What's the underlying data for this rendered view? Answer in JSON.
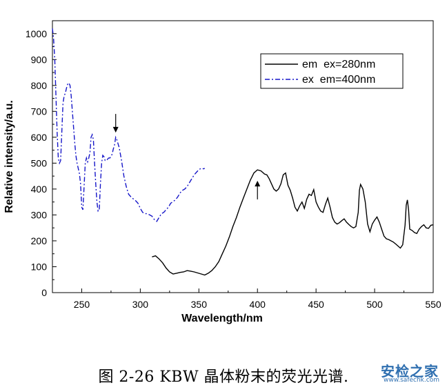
{
  "chart_data": {
    "type": "line",
    "xlabel": "Wavelength/nm",
    "ylabel": "Relative intensity/a.u.",
    "xlim": [
      225,
      550
    ],
    "ylim": [
      0,
      1050
    ],
    "x_ticks": [
      250,
      300,
      350,
      400,
      450,
      500,
      550
    ],
    "y_ticks": [
      0,
      100,
      200,
      300,
      400,
      500,
      600,
      700,
      800,
      900,
      1000
    ],
    "legend_position": "top-right",
    "series": [
      {
        "name": "em  ex=280nm",
        "color": "#000000",
        "style": "solid",
        "points": [
          [
            310,
            138
          ],
          [
            313,
            142
          ],
          [
            316,
            130
          ],
          [
            319,
            115
          ],
          [
            322,
            95
          ],
          [
            325,
            80
          ],
          [
            328,
            72
          ],
          [
            331,
            75
          ],
          [
            334,
            78
          ],
          [
            337,
            80
          ],
          [
            340,
            85
          ],
          [
            343,
            83
          ],
          [
            346,
            80
          ],
          [
            349,
            76
          ],
          [
            352,
            72
          ],
          [
            355,
            68
          ],
          [
            358,
            75
          ],
          [
            361,
            85
          ],
          [
            364,
            100
          ],
          [
            367,
            120
          ],
          [
            370,
            150
          ],
          [
            373,
            180
          ],
          [
            376,
            215
          ],
          [
            379,
            255
          ],
          [
            382,
            290
          ],
          [
            385,
            330
          ],
          [
            388,
            365
          ],
          [
            391,
            400
          ],
          [
            394,
            435
          ],
          [
            397,
            462
          ],
          [
            400,
            474
          ],
          [
            403,
            470
          ],
          [
            406,
            458
          ],
          [
            408,
            455
          ],
          [
            410,
            440
          ],
          [
            412,
            420
          ],
          [
            414,
            400
          ],
          [
            416,
            392
          ],
          [
            418,
            400
          ],
          [
            420,
            420
          ],
          [
            422,
            455
          ],
          [
            424,
            462
          ],
          [
            426,
            415
          ],
          [
            428,
            395
          ],
          [
            430,
            365
          ],
          [
            432,
            330
          ],
          [
            434,
            315
          ],
          [
            436,
            335
          ],
          [
            438,
            350
          ],
          [
            440,
            325
          ],
          [
            442,
            360
          ],
          [
            444,
            380
          ],
          [
            446,
            375
          ],
          [
            448,
            398
          ],
          [
            450,
            350
          ],
          [
            452,
            330
          ],
          [
            454,
            315
          ],
          [
            456,
            310
          ],
          [
            458,
            340
          ],
          [
            460,
            365
          ],
          [
            462,
            330
          ],
          [
            464,
            290
          ],
          [
            466,
            272
          ],
          [
            468,
            265
          ],
          [
            470,
            270
          ],
          [
            472,
            278
          ],
          [
            474,
            285
          ],
          [
            476,
            272
          ],
          [
            478,
            263
          ],
          [
            480,
            255
          ],
          [
            482,
            250
          ],
          [
            484,
            255
          ],
          [
            486,
            310
          ],
          [
            487,
            395
          ],
          [
            488,
            418
          ],
          [
            490,
            400
          ],
          [
            492,
            350
          ],
          [
            494,
            265
          ],
          [
            496,
            235
          ],
          [
            498,
            265
          ],
          [
            500,
            280
          ],
          [
            502,
            292
          ],
          [
            504,
            272
          ],
          [
            506,
            245
          ],
          [
            508,
            218
          ],
          [
            510,
            208
          ],
          [
            512,
            205
          ],
          [
            514,
            200
          ],
          [
            516,
            195
          ],
          [
            518,
            188
          ],
          [
            520,
            180
          ],
          [
            522,
            172
          ],
          [
            524,
            185
          ],
          [
            526,
            260
          ],
          [
            527,
            338
          ],
          [
            528,
            358
          ],
          [
            529,
            320
          ],
          [
            530,
            245
          ],
          [
            532,
            240
          ],
          [
            534,
            232
          ],
          [
            536,
            228
          ],
          [
            538,
            245
          ],
          [
            540,
            255
          ],
          [
            542,
            262
          ],
          [
            544,
            250
          ],
          [
            546,
            248
          ],
          [
            548,
            260
          ],
          [
            550,
            262
          ]
        ]
      },
      {
        "name": "ex  em=400nm",
        "color": "#1515c8",
        "style": "dashdot",
        "points": [
          [
            225,
            1020
          ],
          [
            226,
            980
          ],
          [
            227,
            900
          ],
          [
            228,
            760
          ],
          [
            229,
            620
          ],
          [
            230,
            520
          ],
          [
            231,
            500
          ],
          [
            232,
            510
          ],
          [
            233,
            620
          ],
          [
            234,
            730
          ],
          [
            235,
            760
          ],
          [
            236,
            770
          ],
          [
            237,
            790
          ],
          [
            238,
            805
          ],
          [
            239,
            810
          ],
          [
            240,
            800
          ],
          [
            241,
            760
          ],
          [
            242,
            700
          ],
          [
            243,
            640
          ],
          [
            244,
            580
          ],
          [
            245,
            530
          ],
          [
            246,
            500
          ],
          [
            247,
            480
          ],
          [
            248,
            460
          ],
          [
            249,
            420
          ],
          [
            250,
            330
          ],
          [
            251,
            320
          ],
          [
            252,
            410
          ],
          [
            253,
            500
          ],
          [
            254,
            520
          ],
          [
            255,
            505
          ],
          [
            256,
            520
          ],
          [
            257,
            540
          ],
          [
            258,
            600
          ],
          [
            259,
            610
          ],
          [
            260,
            590
          ],
          [
            261,
            500
          ],
          [
            262,
            420
          ],
          [
            263,
            350
          ],
          [
            264,
            315
          ],
          [
            265,
            320
          ],
          [
            266,
            420
          ],
          [
            267,
            500
          ],
          [
            268,
            530
          ],
          [
            269,
            525
          ],
          [
            270,
            510
          ],
          [
            271,
            510
          ],
          [
            272,
            515
          ],
          [
            273,
            520
          ],
          [
            274,
            520
          ],
          [
            275,
            525
          ],
          [
            276,
            535
          ],
          [
            277,
            555
          ],
          [
            278,
            570
          ],
          [
            279,
            600
          ],
          [
            280,
            590
          ],
          [
            281,
            575
          ],
          [
            282,
            560
          ],
          [
            283,
            535
          ],
          [
            284,
            510
          ],
          [
            285,
            480
          ],
          [
            286,
            450
          ],
          [
            287,
            430
          ],
          [
            288,
            410
          ],
          [
            289,
            395
          ],
          [
            290,
            380
          ],
          [
            292,
            370
          ],
          [
            294,
            362
          ],
          [
            296,
            355
          ],
          [
            298,
            345
          ],
          [
            300,
            325
          ],
          [
            302,
            310
          ],
          [
            304,
            305
          ],
          [
            306,
            305
          ],
          [
            308,
            300
          ],
          [
            310,
            295
          ],
          [
            312,
            282
          ],
          [
            314,
            275
          ],
          [
            316,
            290
          ],
          [
            318,
            305
          ],
          [
            320,
            310
          ],
          [
            322,
            320
          ],
          [
            324,
            330
          ],
          [
            326,
            345
          ],
          [
            328,
            352
          ],
          [
            330,
            358
          ],
          [
            332,
            370
          ],
          [
            334,
            385
          ],
          [
            336,
            395
          ],
          [
            338,
            400
          ],
          [
            340,
            410
          ],
          [
            342,
            425
          ],
          [
            344,
            440
          ],
          [
            346,
            455
          ],
          [
            348,
            465
          ],
          [
            350,
            475
          ],
          [
            352,
            480
          ],
          [
            354,
            478
          ],
          [
            355,
            480
          ]
        ]
      }
    ]
  },
  "annotation": {
    "arrow_label": ""
  },
  "caption": "图 2-26 KBW 晶体粉末的荧光光谱.",
  "watermark": {
    "main": "安检之家",
    "sub": "www.safechk.com"
  }
}
